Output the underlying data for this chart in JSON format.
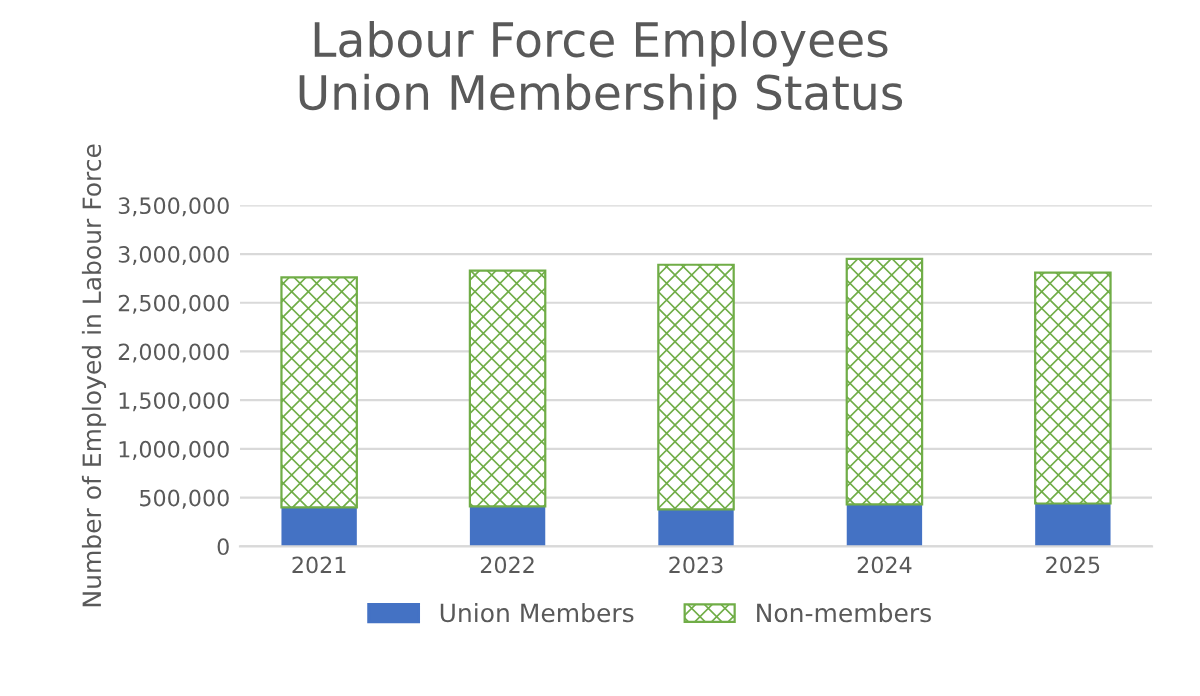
{
  "chart_data": {
    "type": "bar",
    "title": "Labour Force Employees\nUnion Membership Status",
    "ylabel": "Number of Employed in Labour Force",
    "categories": [
      "2021",
      "2022",
      "2023",
      "2024",
      "2025"
    ],
    "stacked": true,
    "series": [
      {
        "name": "Union Members",
        "color": "#4472c4",
        "values": [
          400000,
          410000,
          380000,
          430000,
          440000
        ]
      },
      {
        "name": "Non-members",
        "color": "#70ad47",
        "values": [
          2360000,
          2420000,
          2510000,
          2520000,
          2370000
        ]
      }
    ],
    "ylim": [
      0,
      3500000
    ],
    "yticks": [
      {
        "value": 0,
        "label": "0"
      },
      {
        "value": 500000,
        "label": "500,000"
      },
      {
        "value": 1000000,
        "label": "1,000,000"
      },
      {
        "value": 1500000,
        "label": "1,500,000"
      },
      {
        "value": 2000000,
        "label": "2,000,000"
      },
      {
        "value": 2500000,
        "label": "2,500,000"
      },
      {
        "value": 3000000,
        "label": "3,000,000"
      },
      {
        "value": 3500000,
        "label": "3,500,000"
      }
    ],
    "grid": "y",
    "legend": "bottom"
  }
}
